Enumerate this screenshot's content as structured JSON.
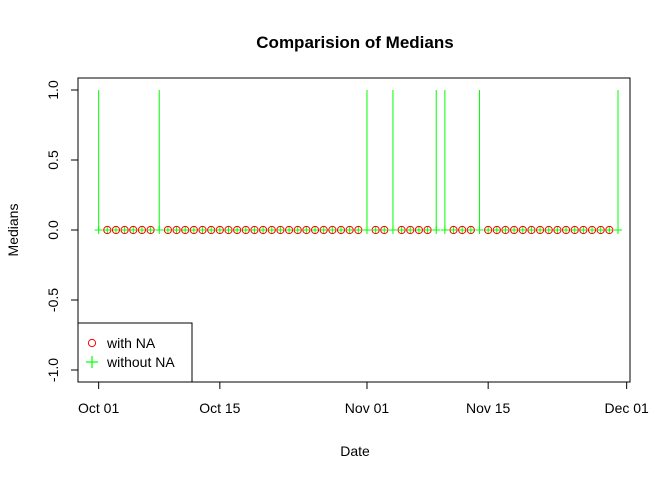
{
  "chart_data": {
    "type": "scatter",
    "title": "Comparision of Medians",
    "xlabel": "Date",
    "ylabel": "Medians",
    "xlim": [
      "2012-09-30",
      "2012-11-30"
    ],
    "ylim": [
      -1.0,
      1.0
    ],
    "x_ticks": [
      {
        "date": "2012-10-01",
        "label": "Oct 01"
      },
      {
        "date": "2012-10-15",
        "label": "Oct 15"
      },
      {
        "date": "2012-11-01",
        "label": "Nov 01"
      },
      {
        "date": "2012-11-15",
        "label": "Nov 15"
      },
      {
        "date": "2012-12-01",
        "label": "Dec 01"
      }
    ],
    "y_ticks": [
      "-1.0",
      "-0.5",
      "0.0",
      "0.5",
      "1.0"
    ],
    "legend_position": "bottom-left",
    "series": [
      {
        "name": "with NA",
        "marker": "open-circle",
        "color": "#ff0000",
        "points": [
          {
            "x": "2012-10-02",
            "y": 0
          },
          {
            "x": "2012-10-03",
            "y": 0
          },
          {
            "x": "2012-10-04",
            "y": 0
          },
          {
            "x": "2012-10-05",
            "y": 0
          },
          {
            "x": "2012-10-06",
            "y": 0
          },
          {
            "x": "2012-10-07",
            "y": 0
          },
          {
            "x": "2012-10-09",
            "y": 0
          },
          {
            "x": "2012-10-10",
            "y": 0
          },
          {
            "x": "2012-10-11",
            "y": 0
          },
          {
            "x": "2012-10-12",
            "y": 0
          },
          {
            "x": "2012-10-13",
            "y": 0
          },
          {
            "x": "2012-10-14",
            "y": 0
          },
          {
            "x": "2012-10-15",
            "y": 0
          },
          {
            "x": "2012-10-16",
            "y": 0
          },
          {
            "x": "2012-10-17",
            "y": 0
          },
          {
            "x": "2012-10-18",
            "y": 0
          },
          {
            "x": "2012-10-19",
            "y": 0
          },
          {
            "x": "2012-10-20",
            "y": 0
          },
          {
            "x": "2012-10-21",
            "y": 0
          },
          {
            "x": "2012-10-22",
            "y": 0
          },
          {
            "x": "2012-10-23",
            "y": 0
          },
          {
            "x": "2012-10-24",
            "y": 0
          },
          {
            "x": "2012-10-25",
            "y": 0
          },
          {
            "x": "2012-10-26",
            "y": 0
          },
          {
            "x": "2012-10-27",
            "y": 0
          },
          {
            "x": "2012-10-28",
            "y": 0
          },
          {
            "x": "2012-10-29",
            "y": 0
          },
          {
            "x": "2012-10-30",
            "y": 0
          },
          {
            "x": "2012-10-31",
            "y": 0
          },
          {
            "x": "2012-11-02",
            "y": 0
          },
          {
            "x": "2012-11-03",
            "y": 0
          },
          {
            "x": "2012-11-05",
            "y": 0
          },
          {
            "x": "2012-11-06",
            "y": 0
          },
          {
            "x": "2012-11-07",
            "y": 0
          },
          {
            "x": "2012-11-08",
            "y": 0
          },
          {
            "x": "2012-11-11",
            "y": 0
          },
          {
            "x": "2012-11-12",
            "y": 0
          },
          {
            "x": "2012-11-13",
            "y": 0
          },
          {
            "x": "2012-11-15",
            "y": 0
          },
          {
            "x": "2012-11-16",
            "y": 0
          },
          {
            "x": "2012-11-17",
            "y": 0
          },
          {
            "x": "2012-11-18",
            "y": 0
          },
          {
            "x": "2012-11-19",
            "y": 0
          },
          {
            "x": "2012-11-20",
            "y": 0
          },
          {
            "x": "2012-11-21",
            "y": 0
          },
          {
            "x": "2012-11-22",
            "y": 0
          },
          {
            "x": "2012-11-23",
            "y": 0
          },
          {
            "x": "2012-11-24",
            "y": 0
          },
          {
            "x": "2012-11-25",
            "y": 0
          },
          {
            "x": "2012-11-26",
            "y": 0
          },
          {
            "x": "2012-11-27",
            "y": 0
          },
          {
            "x": "2012-11-28",
            "y": 0
          },
          {
            "x": "2012-11-29",
            "y": 0
          }
        ]
      },
      {
        "name": "without NA",
        "marker": "plus",
        "style": "vertical-line-from-zero",
        "color": "#00ff00",
        "points": [
          {
            "x": "2012-10-01",
            "y": 1
          },
          {
            "x": "2012-10-02",
            "y": 0
          },
          {
            "x": "2012-10-03",
            "y": 0
          },
          {
            "x": "2012-10-04",
            "y": 0
          },
          {
            "x": "2012-10-05",
            "y": 0
          },
          {
            "x": "2012-10-06",
            "y": 0
          },
          {
            "x": "2012-10-07",
            "y": 0
          },
          {
            "x": "2012-10-08",
            "y": 1
          },
          {
            "x": "2012-10-09",
            "y": 0
          },
          {
            "x": "2012-10-10",
            "y": 0
          },
          {
            "x": "2012-10-11",
            "y": 0
          },
          {
            "x": "2012-10-12",
            "y": 0
          },
          {
            "x": "2012-10-13",
            "y": 0
          },
          {
            "x": "2012-10-14",
            "y": 0
          },
          {
            "x": "2012-10-15",
            "y": 0
          },
          {
            "x": "2012-10-16",
            "y": 0
          },
          {
            "x": "2012-10-17",
            "y": 0
          },
          {
            "x": "2012-10-18",
            "y": 0
          },
          {
            "x": "2012-10-19",
            "y": 0
          },
          {
            "x": "2012-10-20",
            "y": 0
          },
          {
            "x": "2012-10-21",
            "y": 0
          },
          {
            "x": "2012-10-22",
            "y": 0
          },
          {
            "x": "2012-10-23",
            "y": 0
          },
          {
            "x": "2012-10-24",
            "y": 0
          },
          {
            "x": "2012-10-25",
            "y": 0
          },
          {
            "x": "2012-10-26",
            "y": 0
          },
          {
            "x": "2012-10-27",
            "y": 0
          },
          {
            "x": "2012-10-28",
            "y": 0
          },
          {
            "x": "2012-10-29",
            "y": 0
          },
          {
            "x": "2012-10-30",
            "y": 0
          },
          {
            "x": "2012-10-31",
            "y": 0
          },
          {
            "x": "2012-11-01",
            "y": 1
          },
          {
            "x": "2012-11-02",
            "y": 0
          },
          {
            "x": "2012-11-03",
            "y": 0
          },
          {
            "x": "2012-11-04",
            "y": 1
          },
          {
            "x": "2012-11-05",
            "y": 0
          },
          {
            "x": "2012-11-06",
            "y": 0
          },
          {
            "x": "2012-11-07",
            "y": 0
          },
          {
            "x": "2012-11-08",
            "y": 0
          },
          {
            "x": "2012-11-09",
            "y": 1
          },
          {
            "x": "2012-11-10",
            "y": 1
          },
          {
            "x": "2012-11-11",
            "y": 0
          },
          {
            "x": "2012-11-12",
            "y": 0
          },
          {
            "x": "2012-11-13",
            "y": 0
          },
          {
            "x": "2012-11-14",
            "y": 1
          },
          {
            "x": "2012-11-15",
            "y": 0
          },
          {
            "x": "2012-11-16",
            "y": 0
          },
          {
            "x": "2012-11-17",
            "y": 0
          },
          {
            "x": "2012-11-18",
            "y": 0
          },
          {
            "x": "2012-11-19",
            "y": 0
          },
          {
            "x": "2012-11-20",
            "y": 0
          },
          {
            "x": "2012-11-21",
            "y": 0
          },
          {
            "x": "2012-11-22",
            "y": 0
          },
          {
            "x": "2012-11-23",
            "y": 0
          },
          {
            "x": "2012-11-24",
            "y": 0
          },
          {
            "x": "2012-11-25",
            "y": 0
          },
          {
            "x": "2012-11-26",
            "y": 0
          },
          {
            "x": "2012-11-27",
            "y": 0
          },
          {
            "x": "2012-11-28",
            "y": 0
          },
          {
            "x": "2012-11-29",
            "y": 0
          },
          {
            "x": "2012-11-30",
            "y": 1
          }
        ]
      }
    ]
  }
}
